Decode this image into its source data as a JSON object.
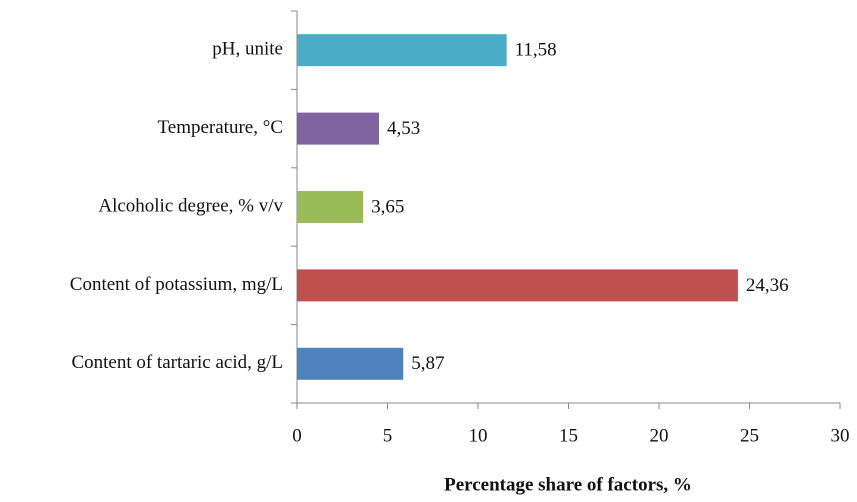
{
  "chart_data": {
    "type": "barh",
    "categories": [
      "pH, unite",
      "Temperature, °C",
      "Alcoholic degree, % v/v",
      "Content of potassium, mg/L",
      "Content of tartaric acid, g/L"
    ],
    "values": [
      11.58,
      4.53,
      3.65,
      24.36,
      5.87
    ],
    "value_labels": [
      "11,58",
      "4,53",
      "3,65",
      "24,36",
      "5,87"
    ],
    "colors": [
      "#4bacc6",
      "#8064a2",
      "#9bbb59",
      "#c0504d",
      "#4f81bd"
    ],
    "xlabel": "Percentage share of factors, %",
    "xlim": [
      0,
      30
    ],
    "xticks": [
      0,
      5,
      10,
      15,
      20,
      25,
      30
    ],
    "grid": false
  }
}
